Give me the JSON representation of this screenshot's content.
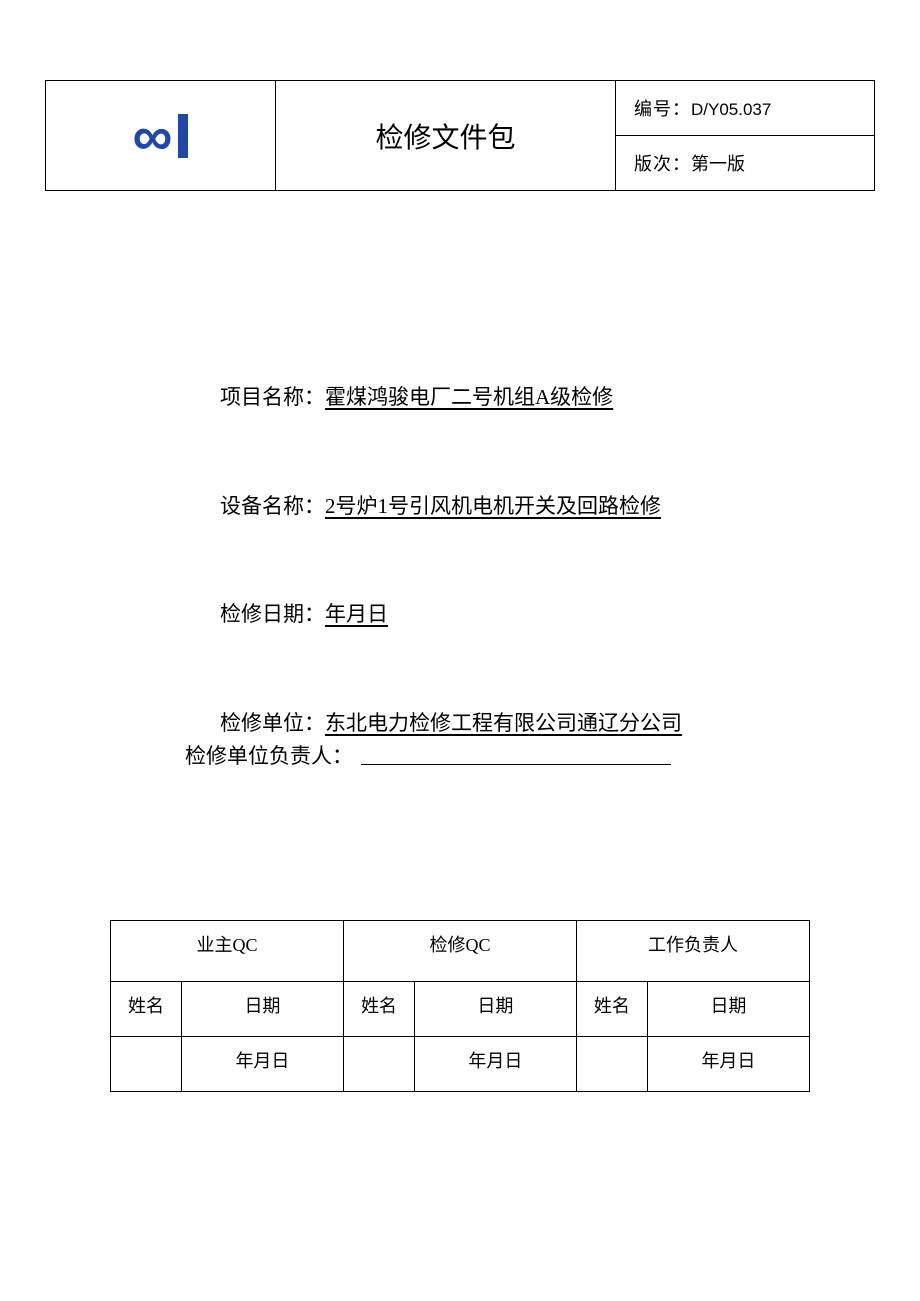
{
  "header": {
    "title": "检修文件包",
    "doc_no_label": "编号：",
    "doc_no_value": "D/Y05.037",
    "version_label": "版次：",
    "version_value": "第一版",
    "logo_color": "#2048a8"
  },
  "fields": {
    "project_label": "项目名称：",
    "project_value": "霍煤鸿骏电厂二号机组A级检修",
    "equipment_label": "设备名称：",
    "equipment_value": "2号炉1号引风机电机开关及回路检修",
    "date_label": "检修日期：",
    "date_value": "年月日",
    "unit_label": "检修单位：",
    "unit_value": "东北电力检修工程有限公司通辽分公司",
    "responsible_label": "检修单位负责人："
  },
  "qc_table": {
    "headers": [
      "业主QC",
      "检修QC",
      "工作负责人"
    ],
    "sub_headers": {
      "name": "姓名",
      "date": "日期"
    },
    "rows": [
      {
        "name1": "",
        "date1": "年月日",
        "name2": "",
        "date2": "年月日",
        "name3": "",
        "date3": "年月日"
      }
    ]
  },
  "style": {
    "text_color": "#000000",
    "background": "#ffffff",
    "border_color": "#000000",
    "title_fontsize": 28,
    "field_fontsize": 21,
    "table_fontsize": 18
  }
}
